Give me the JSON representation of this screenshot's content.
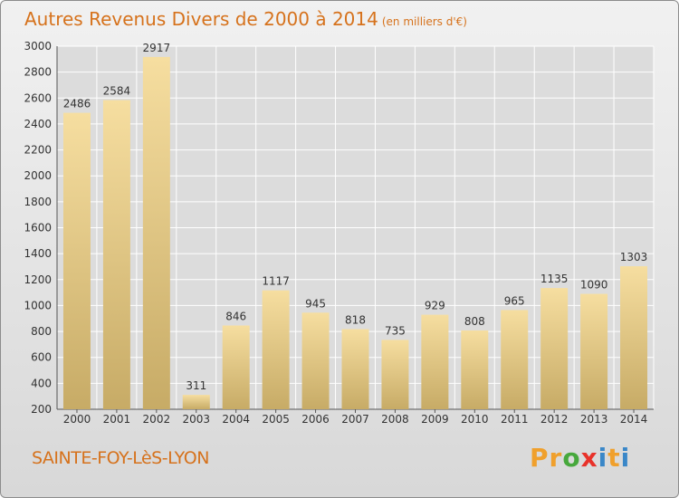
{
  "header": {
    "title": "Autres Revenus Divers de 2000 à 2014",
    "subtitle": "(en milliers d'€)"
  },
  "footer": {
    "city": "SAINTE-FOY-LèS-LYON"
  },
  "logo": {
    "letters": [
      "P",
      "r",
      "o",
      "x",
      "i",
      "t",
      "i"
    ],
    "colors": [
      "#f0a02c",
      "#f0a02c",
      "#47a83c",
      "#e8322a",
      "#3a87c8",
      "#f0a02c",
      "#3a87c8"
    ]
  },
  "colors": {
    "title": "#d6721c",
    "bar_light": "#f6dea0",
    "bar_dark": "#c7ab66"
  },
  "chart_data": {
    "type": "bar",
    "categories": [
      "2000",
      "2001",
      "2002",
      "2003",
      "2004",
      "2005",
      "2006",
      "2007",
      "2008",
      "2009",
      "2010",
      "2011",
      "2012",
      "2013",
      "2014"
    ],
    "values": [
      2486,
      2584,
      2917,
      311,
      846,
      1117,
      945,
      818,
      735,
      929,
      808,
      965,
      1135,
      1090,
      1303
    ],
    "ylim": [
      200,
      3000
    ],
    "yticks": [
      200,
      400,
      600,
      800,
      1000,
      1200,
      1400,
      1600,
      1800,
      2000,
      2200,
      2400,
      2600,
      2800,
      3000
    ],
    "grid": true,
    "title": "Autres Revenus Divers de 2000 à 2014",
    "xlabel": "",
    "ylabel": ""
  }
}
